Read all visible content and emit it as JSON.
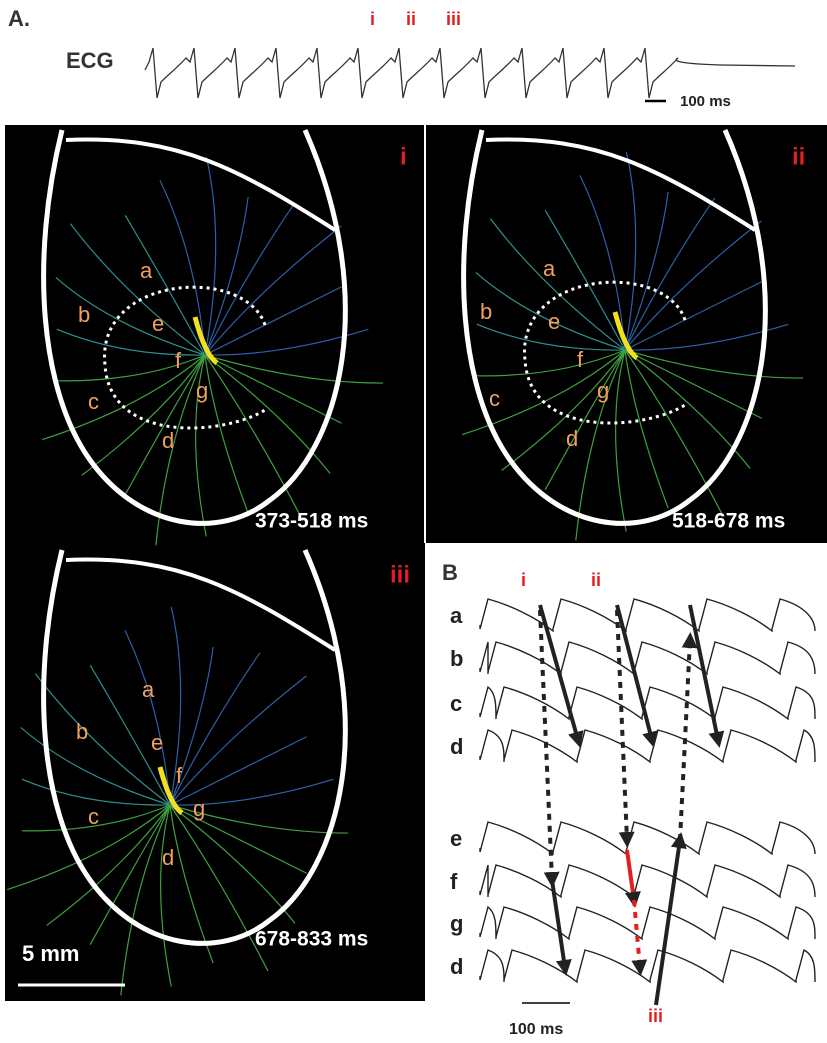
{
  "figure": {
    "panel_a": {
      "label": "A.",
      "ecg_label": "ECG",
      "markers": [
        "i",
        "ii",
        "iii"
      ],
      "scale_bar": "100 ms"
    },
    "maps": [
      {
        "label": "i",
        "letters": [
          "a",
          "b",
          "c",
          "d",
          "e",
          "f",
          "g"
        ],
        "time_range": "373-518 ms"
      },
      {
        "label": "ii",
        "letters": [
          "a",
          "b",
          "c",
          "d",
          "e",
          "f",
          "g"
        ],
        "time_range": "518-678 ms"
      },
      {
        "label": "iii",
        "letters": [
          "a",
          "b",
          "c",
          "d",
          "e",
          "f",
          "g"
        ],
        "time_range": "678-833 ms"
      }
    ],
    "scale_bar": "5 mm",
    "panel_b": {
      "label": "B",
      "markers": [
        "i",
        "ii",
        "iii"
      ],
      "rows": [
        "a",
        "b",
        "c",
        "d",
        "e",
        "f",
        "g",
        "d"
      ],
      "scale_bar": "100 ms"
    }
  }
}
